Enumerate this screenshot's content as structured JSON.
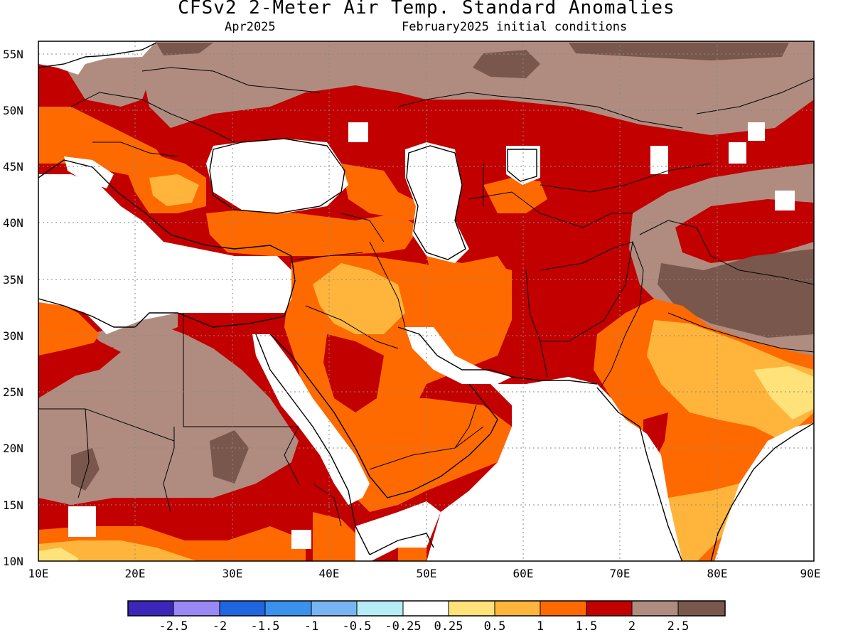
{
  "header": {
    "title": "CFSv2 2-Meter Air Temp. Standard Anomalies",
    "valid_month": "Apr2025",
    "init_conditions": "February2025 initial conditions"
  },
  "map": {
    "region": "Middle East / South Asia",
    "lat_range": [
      10,
      56
    ],
    "lon_range": [
      10,
      90
    ],
    "lat_labels": [
      "55N",
      "50N",
      "45N",
      "40N",
      "35N",
      "30N",
      "25N",
      "20N",
      "15N",
      "10N"
    ],
    "lat_values": [
      55,
      50,
      45,
      40,
      35,
      30,
      25,
      20,
      15,
      10
    ],
    "lon_labels": [
      "10E",
      "20E",
      "30E",
      "40E",
      "50E",
      "60E",
      "70E",
      "80E",
      "90E"
    ],
    "lon_values": [
      10,
      20,
      30,
      40,
      50,
      60,
      70,
      80,
      90
    ],
    "grid": "dotted"
  },
  "colorbar": {
    "colors": [
      "#3a26b8",
      "#9a88f5",
      "#1f66e0",
      "#3b91ee",
      "#79b4f2",
      "#b4eef4",
      "#ffffff",
      "#ffe27a",
      "#ffb53c",
      "#ff6a00",
      "#c20000",
      "#b08c80",
      "#7a574c"
    ],
    "labels": [
      "-2.5",
      "-2",
      "-1.5",
      "-1",
      "-0.5",
      "-0.25",
      "0.25",
      "0.5",
      "1",
      "1.5",
      "2",
      "2.5"
    ]
  },
  "legend_meaning": {
    "white": "#ffffff",
    "yellow": "#ffe27a",
    "light_orange": "#ffb53c",
    "orange": "#ff6a00",
    "red": "#c20000",
    "brown": "#b08c80",
    "dark_brown": "#7a574c"
  }
}
